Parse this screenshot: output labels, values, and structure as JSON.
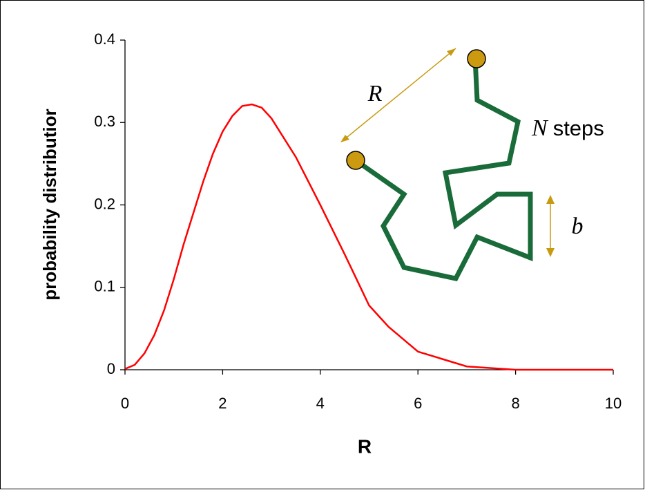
{
  "chart_data": {
    "type": "line",
    "x_label": "R",
    "y_label": "probability distributior",
    "x": [
      0,
      0.2,
      0.4,
      0.6,
      0.8,
      1,
      1.2,
      1.4,
      1.6,
      1.8,
      2,
      2.2,
      2.4,
      2.6,
      2.8,
      3,
      3.5,
      4,
      4.5,
      5,
      5.4,
      5.8,
      6,
      6.5,
      7,
      7.5,
      8,
      10
    ],
    "series": [
      {
        "color": "#ff0000",
        "values": [
          0.001,
          0.006,
          0.02,
          0.042,
          0.072,
          0.11,
          0.152,
          0.19,
          0.228,
          0.262,
          0.289,
          0.308,
          0.32,
          0.322,
          0.318,
          0.305,
          0.258,
          0.2,
          0.14,
          0.078,
          0.052,
          0.032,
          0.022,
          0.013,
          0.004,
          0.002,
          0,
          0
        ]
      }
    ],
    "xlim": [
      0,
      10
    ],
    "xticks": [
      0,
      2,
      4,
      6,
      8,
      10
    ],
    "ylim": [
      0,
      0.4
    ],
    "yticks": [
      0,
      0.1,
      0.2,
      0.3,
      0.4
    ],
    "grid": false,
    "annotations": [
      "R",
      "N",
      "steps",
      "b"
    ]
  }
}
